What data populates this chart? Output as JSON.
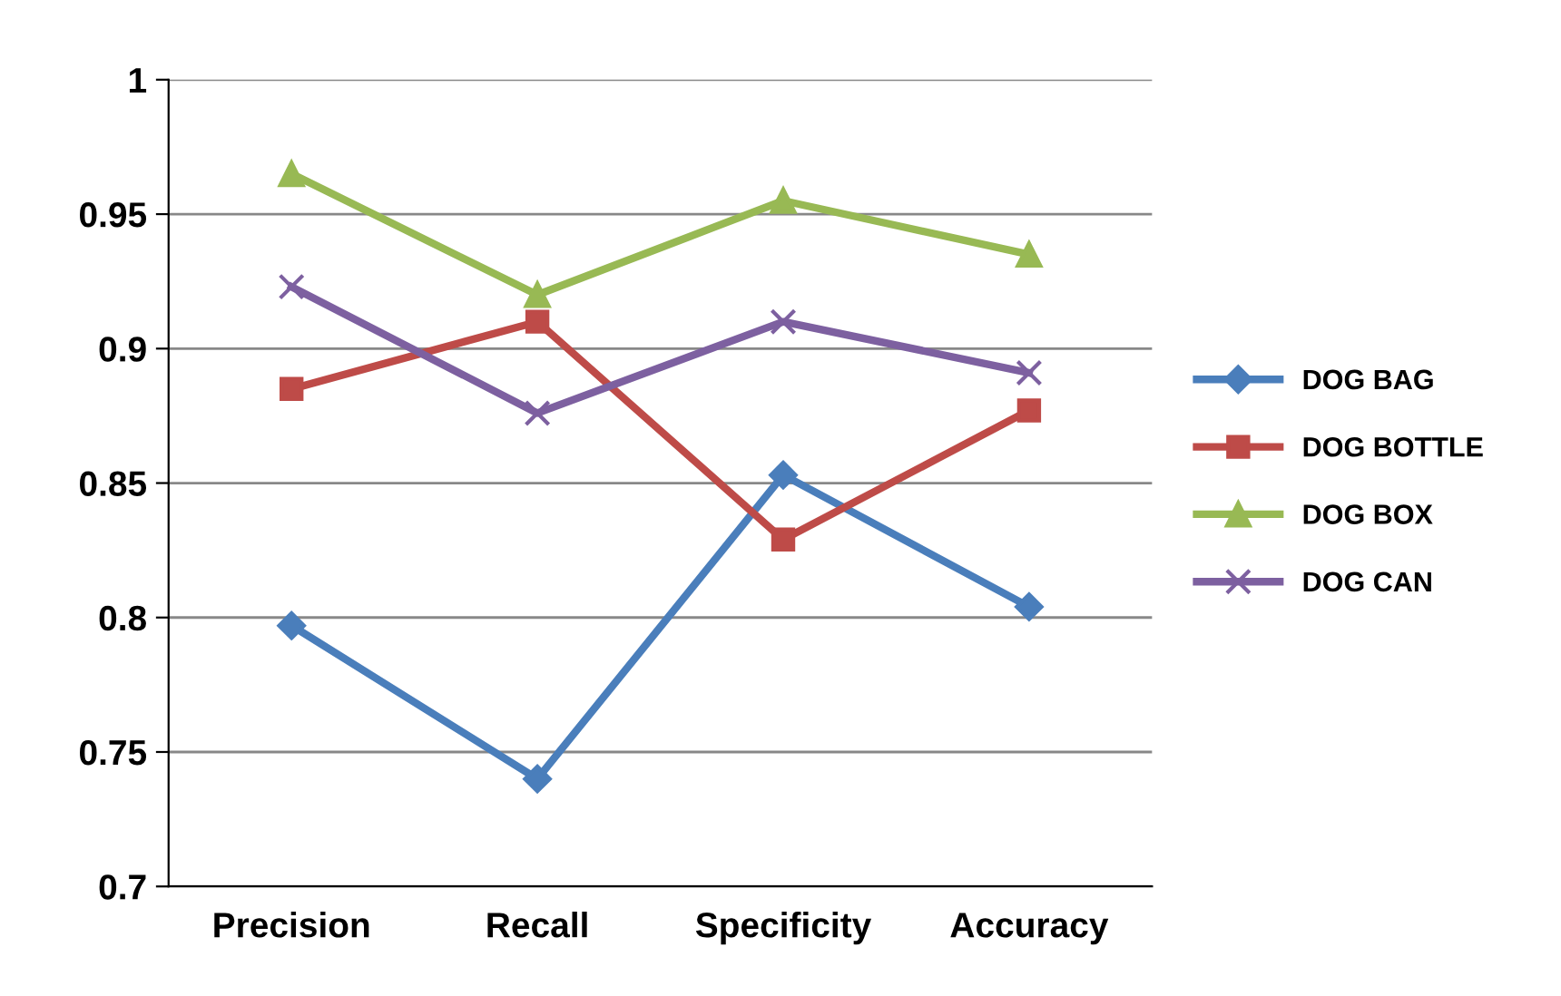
{
  "chart_data": {
    "type": "line",
    "categories": [
      "Precision",
      "Recall",
      "Specificity",
      "Accuracy"
    ],
    "series": [
      {
        "name": "DOG BAG",
        "color": "#4a7ebb",
        "marker": "diamond",
        "values": [
          0.797,
          0.74,
          0.853,
          0.804
        ]
      },
      {
        "name": "DOG BOTTLE",
        "color": "#be4b48",
        "marker": "square",
        "values": [
          0.885,
          0.91,
          0.829,
          0.877
        ]
      },
      {
        "name": "DOG BOX",
        "color": "#98b954",
        "marker": "triangle",
        "values": [
          0.965,
          0.92,
          0.955,
          0.935
        ]
      },
      {
        "name": "DOG CAN",
        "color": "#7d60a0",
        "marker": "cross",
        "values": [
          0.923,
          0.876,
          0.91,
          0.891
        ]
      }
    ],
    "ylim": [
      0.7,
      1
    ],
    "yticks": [
      {
        "value": 0.7,
        "label": "0.7"
      },
      {
        "value": 0.75,
        "label": "0.75"
      },
      {
        "value": 0.8,
        "label": "0.8"
      },
      {
        "value": 0.85,
        "label": "0.85"
      },
      {
        "value": 0.9,
        "label": "0.9"
      },
      {
        "value": 0.95,
        "label": "0.95"
      },
      {
        "value": 1,
        "label": "1"
      }
    ],
    "grid": "y",
    "legend": "right",
    "line_style": "solid"
  }
}
